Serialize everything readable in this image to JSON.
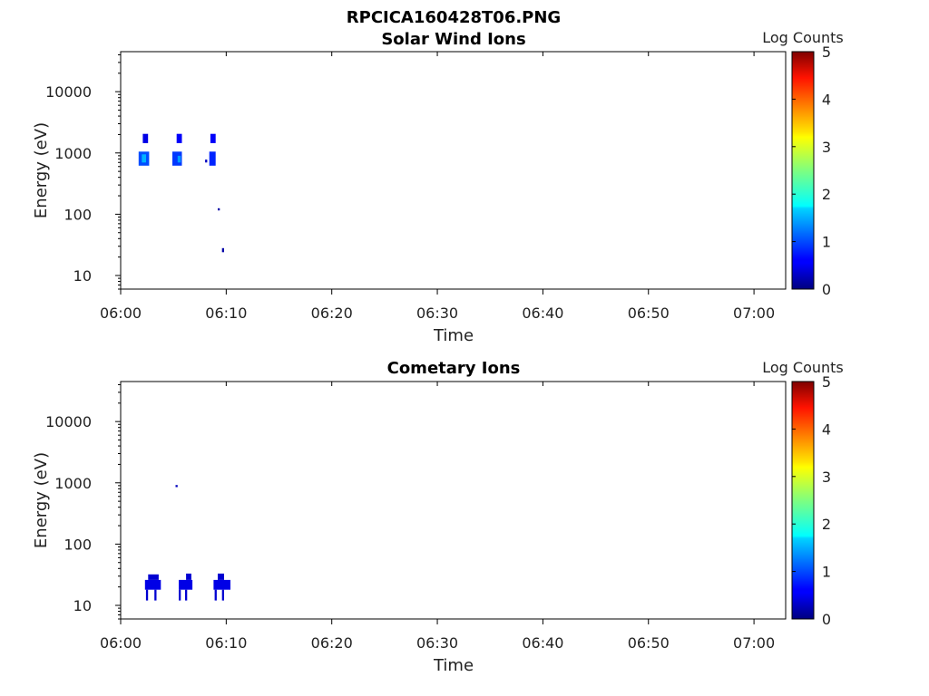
{
  "figure_title": "RPCICA160428T06.PNG",
  "chart_data": [
    {
      "type": "heatmap",
      "title": "Solar Wind Ions",
      "xlabel": "Time",
      "ylabel": "Energy (eV)",
      "x_range": [
        "06:00",
        "07:03"
      ],
      "y_scale": "log",
      "y_range": [
        6,
        45000
      ],
      "x_ticks": [
        "06:00",
        "06:10",
        "06:20",
        "06:30",
        "06:40",
        "06:50",
        "07:00"
      ],
      "y_ticks": [
        "10",
        "100",
        "1000",
        "10000"
      ],
      "colorbar": {
        "label": "Log Counts",
        "range": [
          0,
          5
        ],
        "ticks": [
          "0",
          "1",
          "2",
          "3",
          "4",
          "5"
        ],
        "colormap": "jet"
      },
      "cells": [
        {
          "t0": 2.1,
          "t1": 2.6,
          "e0": 1450,
          "e1": 2050,
          "v": 0.5
        },
        {
          "t0": 1.7,
          "t1": 2.7,
          "e0": 620,
          "e1": 1050,
          "v": 1.0
        },
        {
          "t0": 2.0,
          "t1": 2.4,
          "e0": 700,
          "e1": 950,
          "v": 1.5
        },
        {
          "t0": 5.3,
          "t1": 5.8,
          "e0": 1450,
          "e1": 2050,
          "v": 0.6
        },
        {
          "t0": 4.9,
          "t1": 5.8,
          "e0": 620,
          "e1": 1050,
          "v": 0.9
        },
        {
          "t0": 5.4,
          "t1": 5.7,
          "e0": 700,
          "e1": 900,
          "v": 1.4
        },
        {
          "t0": 8.5,
          "t1": 9.0,
          "e0": 1450,
          "e1": 2050,
          "v": 0.6
        },
        {
          "t0": 8.4,
          "t1": 9.0,
          "e0": 620,
          "e1": 1050,
          "v": 0.8
        },
        {
          "t0": 8.0,
          "t1": 8.2,
          "e0": 700,
          "e1": 780,
          "v": 0.3
        },
        {
          "t0": 9.2,
          "t1": 9.4,
          "e0": 115,
          "e1": 125,
          "v": 0.2
        },
        {
          "t0": 9.6,
          "t1": 9.8,
          "e0": 24,
          "e1": 28,
          "v": 0.2
        }
      ]
    },
    {
      "type": "heatmap",
      "title": "Cometary Ions",
      "xlabel": "Time",
      "ylabel": "Energy (eV)",
      "x_range": [
        "06:00",
        "07:03"
      ],
      "y_scale": "log",
      "y_range": [
        6,
        45000
      ],
      "x_ticks": [
        "06:00",
        "06:10",
        "06:20",
        "06:30",
        "06:40",
        "06:50",
        "07:00"
      ],
      "y_ticks": [
        "10",
        "100",
        "1000",
        "10000"
      ],
      "colorbar": {
        "label": "Log Counts",
        "range": [
          0,
          5
        ],
        "ticks": [
          "0",
          "1",
          "2",
          "3",
          "4",
          "5"
        ],
        "colormap": "jet"
      },
      "cells": [
        {
          "t0": 2.6,
          "t1": 3.6,
          "e0": 26,
          "e1": 32,
          "v": 0.4
        },
        {
          "t0": 2.3,
          "t1": 3.8,
          "e0": 18,
          "e1": 26,
          "v": 0.5
        },
        {
          "t0": 2.4,
          "t1": 2.6,
          "e0": 12,
          "e1": 18,
          "v": 0.4
        },
        {
          "t0": 3.2,
          "t1": 3.4,
          "e0": 12,
          "e1": 18,
          "v": 0.4
        },
        {
          "t0": 5.2,
          "t1": 5.4,
          "e0": 850,
          "e1": 920,
          "v": 0.3
        },
        {
          "t0": 6.2,
          "t1": 6.7,
          "e0": 26,
          "e1": 33,
          "v": 0.4
        },
        {
          "t0": 5.5,
          "t1": 6.8,
          "e0": 18,
          "e1": 26,
          "v": 0.5
        },
        {
          "t0": 5.5,
          "t1": 5.7,
          "e0": 12,
          "e1": 18,
          "v": 0.4
        },
        {
          "t0": 6.1,
          "t1": 6.3,
          "e0": 12,
          "e1": 18,
          "v": 0.4
        },
        {
          "t0": 9.2,
          "t1": 9.8,
          "e0": 26,
          "e1": 33,
          "v": 0.4
        },
        {
          "t0": 8.8,
          "t1": 10.4,
          "e0": 18,
          "e1": 26,
          "v": 0.5
        },
        {
          "t0": 8.9,
          "t1": 9.1,
          "e0": 12,
          "e1": 18,
          "v": 0.4
        },
        {
          "t0": 9.6,
          "t1": 9.8,
          "e0": 12,
          "e1": 18,
          "v": 0.4
        }
      ]
    }
  ]
}
